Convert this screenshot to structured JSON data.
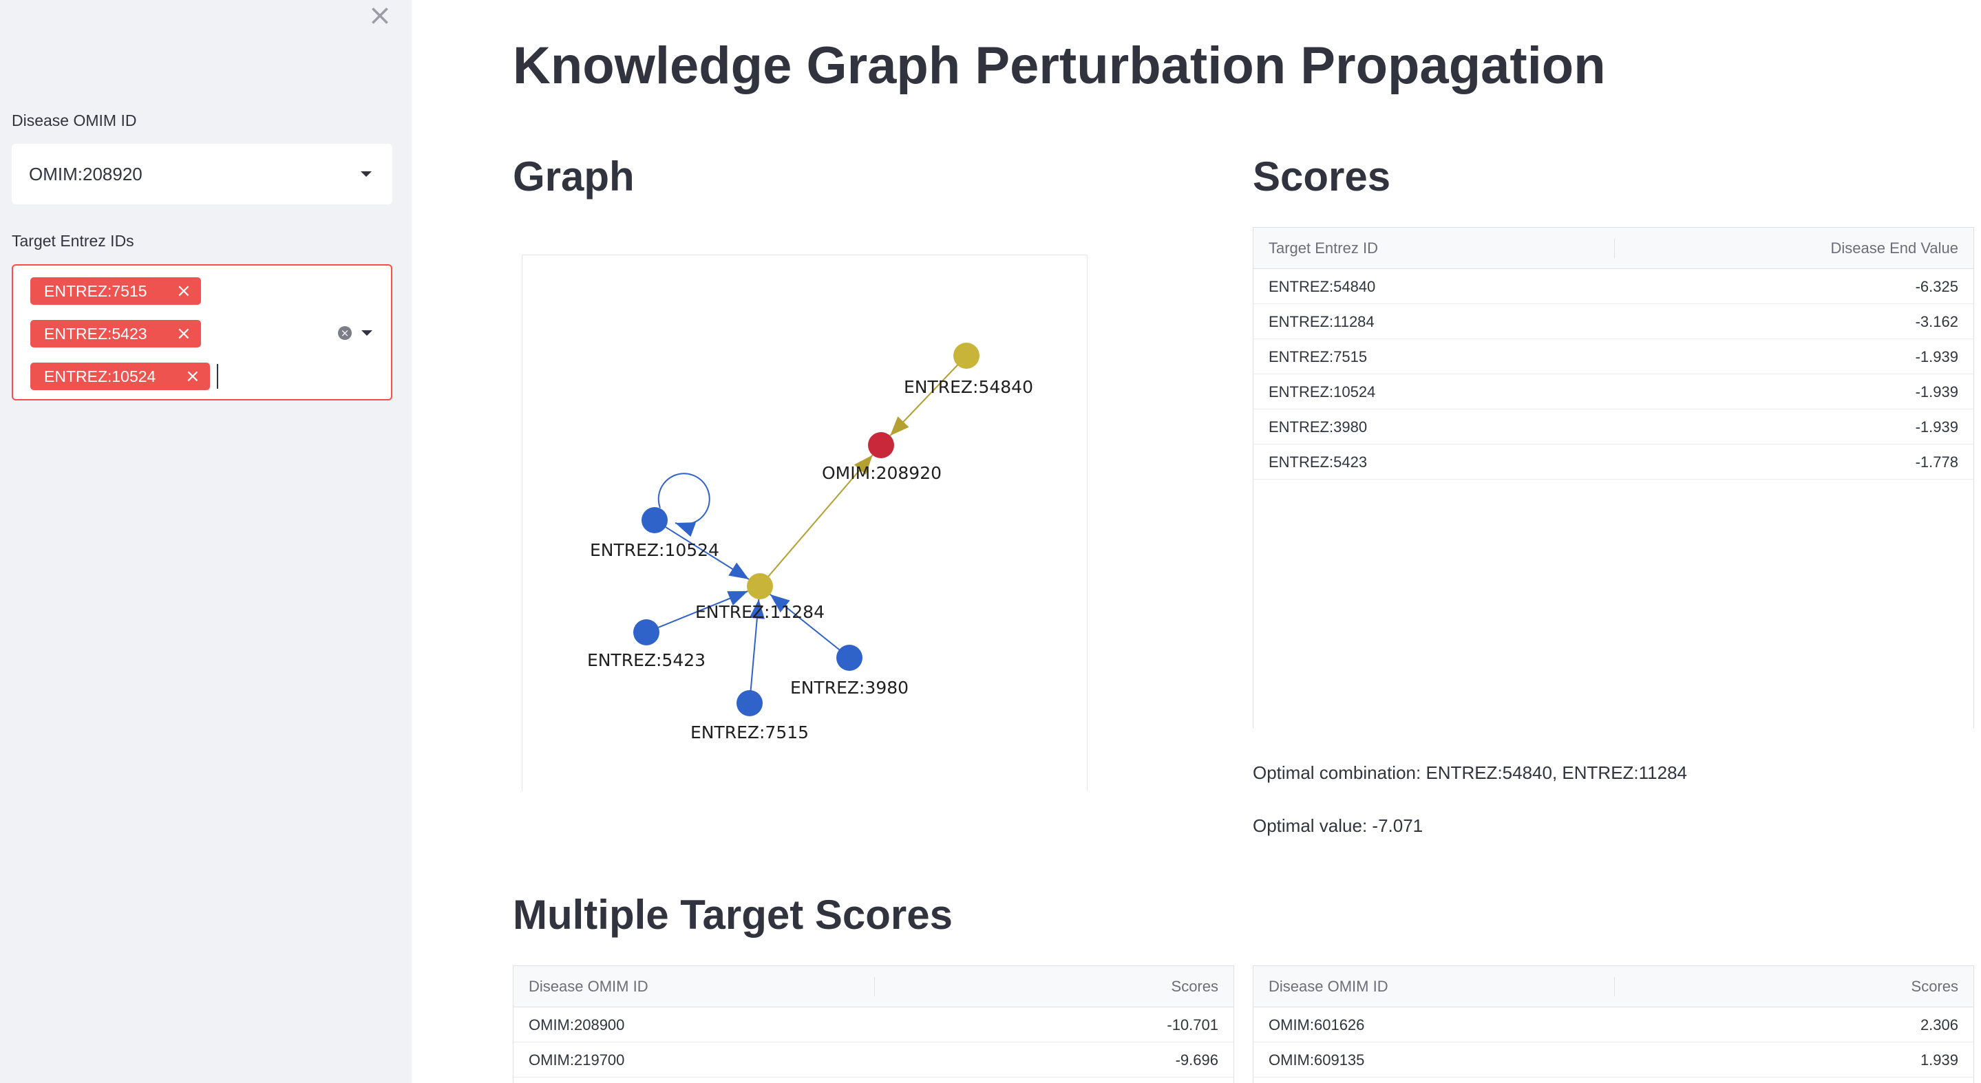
{
  "sidebar": {
    "disease_label": "Disease OMIM ID",
    "disease_value": "OMIM:208920",
    "targets_label": "Target Entrez IDs",
    "targets": [
      "ENTREZ:7515",
      "ENTREZ:5423",
      "ENTREZ:10524"
    ]
  },
  "main": {
    "title": "Knowledge Graph Perturbation Propagation",
    "graph_title": "Graph",
    "scores_title": "Scores",
    "multi_title": "Multiple Target Scores"
  },
  "graph": {
    "nodes": [
      {
        "id": "ENTREZ:54840",
        "label": "ENTREZ:54840",
        "color": "#c9b43a"
      },
      {
        "id": "OMIM:208920",
        "label": "OMIM:208920",
        "color": "#c8283a"
      },
      {
        "id": "ENTREZ:10524",
        "label": "ENTREZ:10524",
        "color": "#2f63c9"
      },
      {
        "id": "ENTREZ:11284",
        "label": "ENTREZ:11284",
        "color": "#c9b43a"
      },
      {
        "id": "ENTREZ:5423",
        "label": "ENTREZ:5423",
        "color": "#2f63c9"
      },
      {
        "id": "ENTREZ:3980",
        "label": "ENTREZ:3980",
        "color": "#2f63c9"
      },
      {
        "id": "ENTREZ:7515",
        "label": "ENTREZ:7515",
        "color": "#2f63c9"
      }
    ],
    "edges": [
      {
        "from": "ENTREZ:54840",
        "to": "OMIM:208920",
        "color": "#b4a030"
      },
      {
        "from": "ENTREZ:11284",
        "to": "OMIM:208920",
        "color": "#b4a030"
      },
      {
        "from": "ENTREZ:10524",
        "to": "ENTREZ:11284",
        "color": "#2f63c9"
      },
      {
        "from": "ENTREZ:5423",
        "to": "ENTREZ:11284",
        "color": "#2f63c9"
      },
      {
        "from": "ENTREZ:7515",
        "to": "ENTREZ:11284",
        "color": "#2f63c9"
      },
      {
        "from": "ENTREZ:3980",
        "to": "ENTREZ:11284",
        "color": "#2f63c9"
      },
      {
        "from": "ENTREZ:10524",
        "to": "ENTREZ:10524",
        "color": "#2f63c9"
      }
    ]
  },
  "scores_table": {
    "headers": [
      "Target Entrez ID",
      "Disease End Value"
    ],
    "rows": [
      [
        "ENTREZ:54840",
        "-6.325"
      ],
      [
        "ENTREZ:11284",
        "-3.162"
      ],
      [
        "ENTREZ:7515",
        "-1.939"
      ],
      [
        "ENTREZ:10524",
        "-1.939"
      ],
      [
        "ENTREZ:3980",
        "-1.939"
      ],
      [
        "ENTREZ:5423",
        "-1.778"
      ]
    ]
  },
  "optimal": {
    "combination": "Optimal combination: ENTREZ:54840, ENTREZ:11284",
    "value": "Optimal value: -7.071"
  },
  "multi_left": {
    "headers": [
      "Disease OMIM ID",
      "Scores"
    ],
    "rows": [
      [
        "OMIM:208900",
        "-10.701"
      ],
      [
        "OMIM:219700",
        "-9.696"
      ]
    ]
  },
  "multi_right": {
    "headers": [
      "Disease OMIM ID",
      "Scores"
    ],
    "rows": [
      [
        "OMIM:601626",
        "2.306"
      ],
      [
        "OMIM:609135",
        "1.939"
      ]
    ]
  }
}
